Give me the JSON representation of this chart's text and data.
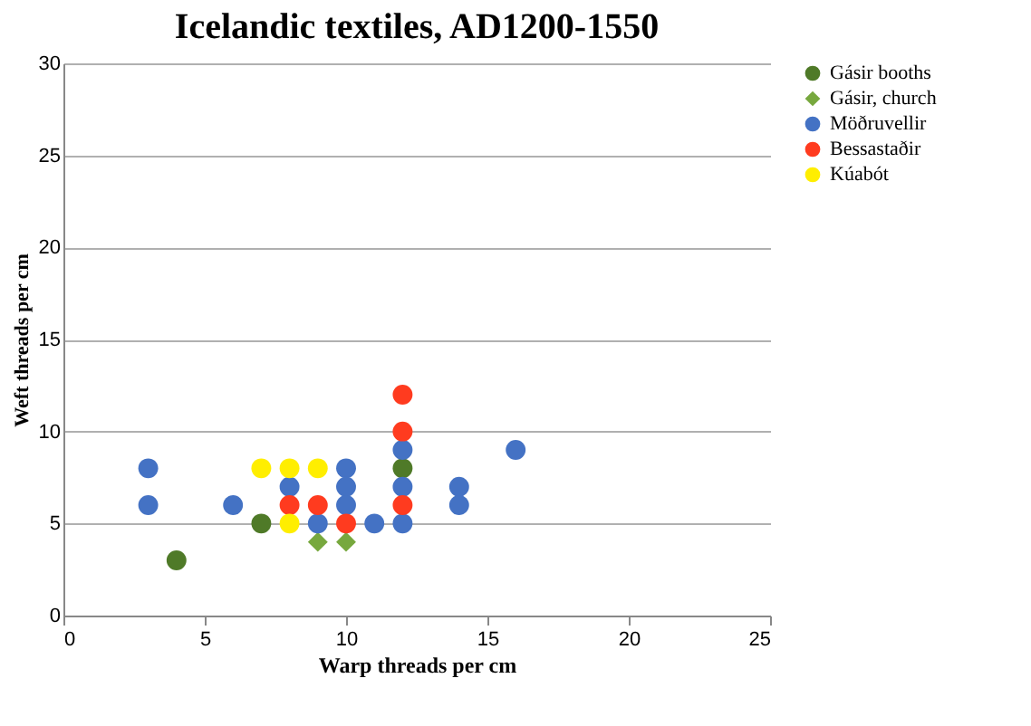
{
  "chart_data": {
    "type": "scatter",
    "title": "Icelandic textiles, AD1200-1550",
    "xlabel": "Warp threads per cm",
    "ylabel": "Weft threads per cm",
    "xlim": [
      0,
      25
    ],
    "xticks": [
      0,
      5,
      10,
      15,
      20,
      25
    ],
    "ylim": [
      0,
      30
    ],
    "yticks": [
      0,
      5,
      10,
      15,
      20,
      25,
      30
    ],
    "grid": "y",
    "legend": "right",
    "series": [
      {
        "name": "Gásir booths",
        "color": "#4f7a28",
        "marker": "circle",
        "x": [
          4,
          7,
          12
        ],
        "values": [
          3,
          5,
          8
        ]
      },
      {
        "name": "Gásir, church",
        "color": "#77a83e",
        "marker": "diamond",
        "x": [
          9,
          10
        ],
        "values": [
          4,
          4
        ]
      },
      {
        "name": "Möðruvellir",
        "color": "#4472c4",
        "marker": "circle",
        "x": [
          3,
          3,
          6,
          8,
          9,
          10,
          10,
          10,
          11,
          12,
          12,
          12,
          14,
          14,
          16
        ],
        "values": [
          8,
          6,
          6,
          7,
          5,
          8,
          7,
          6,
          5,
          5,
          7,
          9,
          7,
          6,
          9
        ]
      },
      {
        "name": "Bessastaðir",
        "color": "#ff3b1f",
        "marker": "circle",
        "x": [
          8,
          9,
          10,
          12,
          12,
          12
        ],
        "values": [
          6,
          6,
          5,
          6,
          10,
          12
        ]
      },
      {
        "name": "Kúabót",
        "color": "#ffee00",
        "marker": "circle",
        "x": [
          7,
          8,
          9,
          8
        ],
        "values": [
          8,
          8,
          8,
          5
        ]
      }
    ]
  }
}
